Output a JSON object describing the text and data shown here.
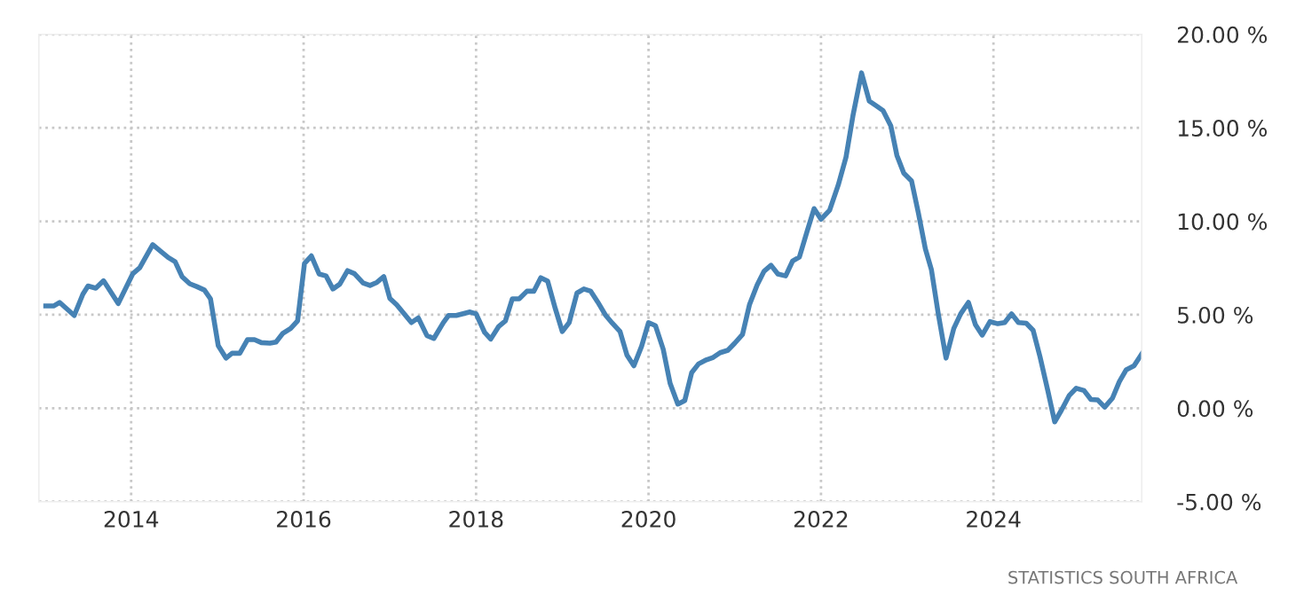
{
  "chart_data": {
    "type": "line",
    "x": [
      2013.01,
      2013.1,
      2013.17,
      2013.34,
      2013.44,
      2013.5,
      2013.59,
      2013.68,
      2013.85,
      2014.02,
      2014.1,
      2014.25,
      2014.33,
      2014.43,
      2014.51,
      2014.59,
      2014.68,
      2014.76,
      2014.85,
      2014.92,
      2015.01,
      2015.1,
      2015.17,
      2015.26,
      2015.35,
      2015.43,
      2015.51,
      2015.61,
      2015.68,
      2015.76,
      2015.85,
      2015.93,
      2016.01,
      2016.09,
      2016.18,
      2016.26,
      2016.34,
      2016.42,
      2016.51,
      2016.59,
      2016.69,
      2016.77,
      2016.85,
      2016.93,
      2017.0,
      2017.08,
      2017.25,
      2017.33,
      2017.43,
      2017.51,
      2017.62,
      2017.68,
      2017.77,
      2017.93,
      2018.0,
      2018.1,
      2018.17,
      2018.26,
      2018.34,
      2018.42,
      2018.5,
      2018.59,
      2018.67,
      2018.75,
      2018.83,
      2018.92,
      2019.0,
      2019.08,
      2019.17,
      2019.25,
      2019.33,
      2019.41,
      2019.5,
      2019.58,
      2019.67,
      2019.75,
      2019.83,
      2019.92,
      2020.0,
      2020.08,
      2020.17,
      2020.25,
      2020.34,
      2020.42,
      2020.5,
      2020.58,
      2020.67,
      2020.75,
      2020.83,
      2020.92,
      2021.0,
      2021.09,
      2021.17,
      2021.26,
      2021.34,
      2021.42,
      2021.5,
      2021.59,
      2021.67,
      2021.75,
      2021.84,
      2021.92,
      2022.0,
      2022.1,
      2022.2,
      2022.29,
      2022.37,
      2022.47,
      2022.56,
      2022.64,
      2022.72,
      2022.81,
      2022.88,
      2022.96,
      2023.05,
      2023.13,
      2023.21,
      2023.28,
      2023.36,
      2023.45,
      2023.54,
      2023.62,
      2023.71,
      2023.79,
      2023.87,
      2023.96,
      2024.05,
      2024.13,
      2024.21,
      2024.29,
      2024.38,
      2024.46,
      2024.54,
      2024.63,
      2024.71,
      2024.79,
      2024.88,
      2024.96,
      2025.05,
      2025.13,
      2025.21,
      2025.29,
      2025.38,
      2025.46,
      2025.54,
      2025.63,
      2025.72
    ],
    "series": [
      {
        "color": "#4682b4",
        "values": [
          5.47,
          5.47,
          5.66,
          4.96,
          6.1,
          6.54,
          6.42,
          6.82,
          5.6,
          7.2,
          7.52,
          8.75,
          8.44,
          8.06,
          7.84,
          7.04,
          6.66,
          6.51,
          6.32,
          5.85,
          3.35,
          2.68,
          2.94,
          2.94,
          3.67,
          3.67,
          3.51,
          3.48,
          3.54,
          4.01,
          4.27,
          4.67,
          7.74,
          8.15,
          7.18,
          7.08,
          6.38,
          6.64,
          7.36,
          7.2,
          6.7,
          6.57,
          6.73,
          7.04,
          5.88,
          5.53,
          4.58,
          4.83,
          3.89,
          3.73,
          4.58,
          4.96,
          4.96,
          5.15,
          5.05,
          4.05,
          3.7,
          4.36,
          4.67,
          5.85,
          5.85,
          6.26,
          6.26,
          6.98,
          6.8,
          5.31,
          4.1,
          4.58,
          6.16,
          6.38,
          6.26,
          5.69,
          4.99,
          4.55,
          4.1,
          2.84,
          2.27,
          3.32,
          4.58,
          4.42,
          3.16,
          1.33,
          0.22,
          0.41,
          1.9,
          2.37,
          2.59,
          2.72,
          2.97,
          3.1,
          3.48,
          3.95,
          5.53,
          6.6,
          7.33,
          7.65,
          7.18,
          7.08,
          7.87,
          8.09,
          9.48,
          10.68,
          10.11,
          10.59,
          11.94,
          13.43,
          15.64,
          17.94,
          16.43,
          16.18,
          15.92,
          15.1,
          13.53,
          12.58,
          12.16,
          10.43,
          8.53,
          7.42,
          5.05,
          2.68,
          4.27,
          5.05,
          5.66,
          4.48,
          3.91,
          4.64,
          4.52,
          4.58,
          5.05,
          4.58,
          4.55,
          4.17,
          2.75,
          0.95,
          -0.73,
          -0.09,
          0.69,
          1.07,
          0.95,
          0.47,
          0.44,
          0.06,
          0.54,
          1.42,
          2.06,
          2.27,
          2.91
        ]
      }
    ],
    "xlim": [
      2012.93,
      2025.72
    ],
    "xticks": [
      2014,
      2016,
      2018,
      2020,
      2022,
      2024
    ],
    "ylim": [
      -5,
      20
    ],
    "yticks": [
      {
        "value": -5,
        "label": "-5.00 %"
      },
      {
        "value": 0,
        "label": "0.00 %"
      },
      {
        "value": 5,
        "label": "5.00 %"
      },
      {
        "value": 10,
        "label": "10.00 %"
      },
      {
        "value": 15,
        "label": "15.00 %"
      },
      {
        "value": 20,
        "label": "20.00 %"
      }
    ],
    "grid": true,
    "line_style": "solid",
    "annotations": [
      "STATISTICS SOUTH AFRICA"
    ]
  }
}
